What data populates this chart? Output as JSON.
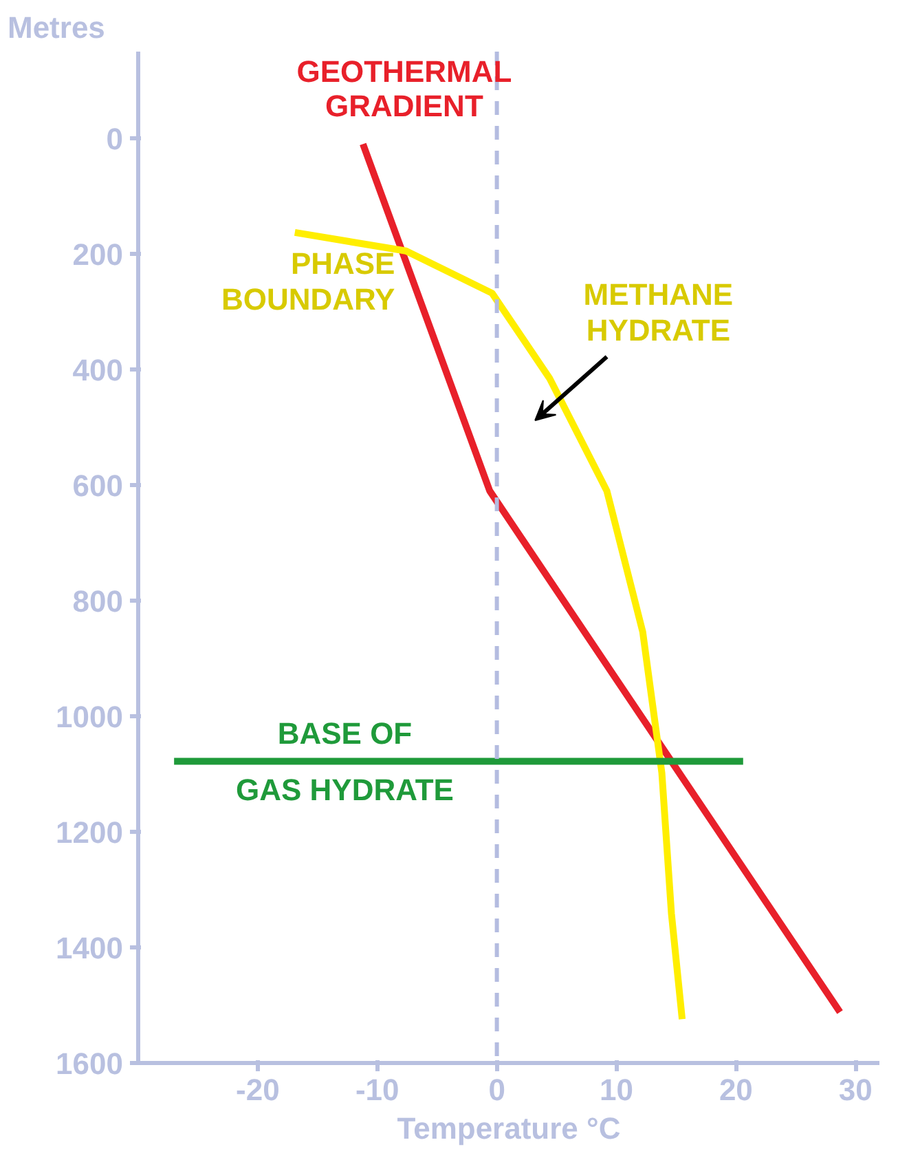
{
  "chart_data": {
    "type": "line",
    "xlabel": "Temperature °C",
    "ylabel": "Metres",
    "xlim": [
      -30,
      32
    ],
    "ylim": [
      1600,
      -150
    ],
    "xticks": [
      -20,
      -10,
      0,
      10,
      20,
      30
    ],
    "yticks": [
      0,
      200,
      400,
      600,
      800,
      1000,
      1200,
      1400,
      1600
    ],
    "grid": false,
    "marker": "none",
    "line_style": "solid",
    "series": [
      {
        "name": "GEOTHERMAL GRADIENT",
        "color": "#e8202a",
        "x": [
          -11.2,
          -0.6,
          28.7
        ],
        "values": [
          10,
          610,
          1512
        ]
      },
      {
        "name": "PHASE BOUNDARY",
        "color": "#ffee00",
        "x": [
          -16.9,
          -7.6,
          -0.4,
          4.4,
          9.2,
          12.2,
          13.8,
          14.6,
          15.5
        ],
        "values": [
          163,
          195,
          268,
          415,
          610,
          854,
          1098,
          1341,
          1524
        ]
      },
      {
        "name": "BASE OF GAS HYDRATE",
        "color": "#1f9a3a",
        "x": [
          -27,
          20.6
        ],
        "values": [
          1078,
          1078
        ]
      }
    ],
    "ref_lines": [
      {
        "axis": "x",
        "value": 0,
        "color": "#b4bce0",
        "line_style": "dashed"
      }
    ],
    "annotations": [
      "METHANE HYDRATE"
    ]
  }
}
